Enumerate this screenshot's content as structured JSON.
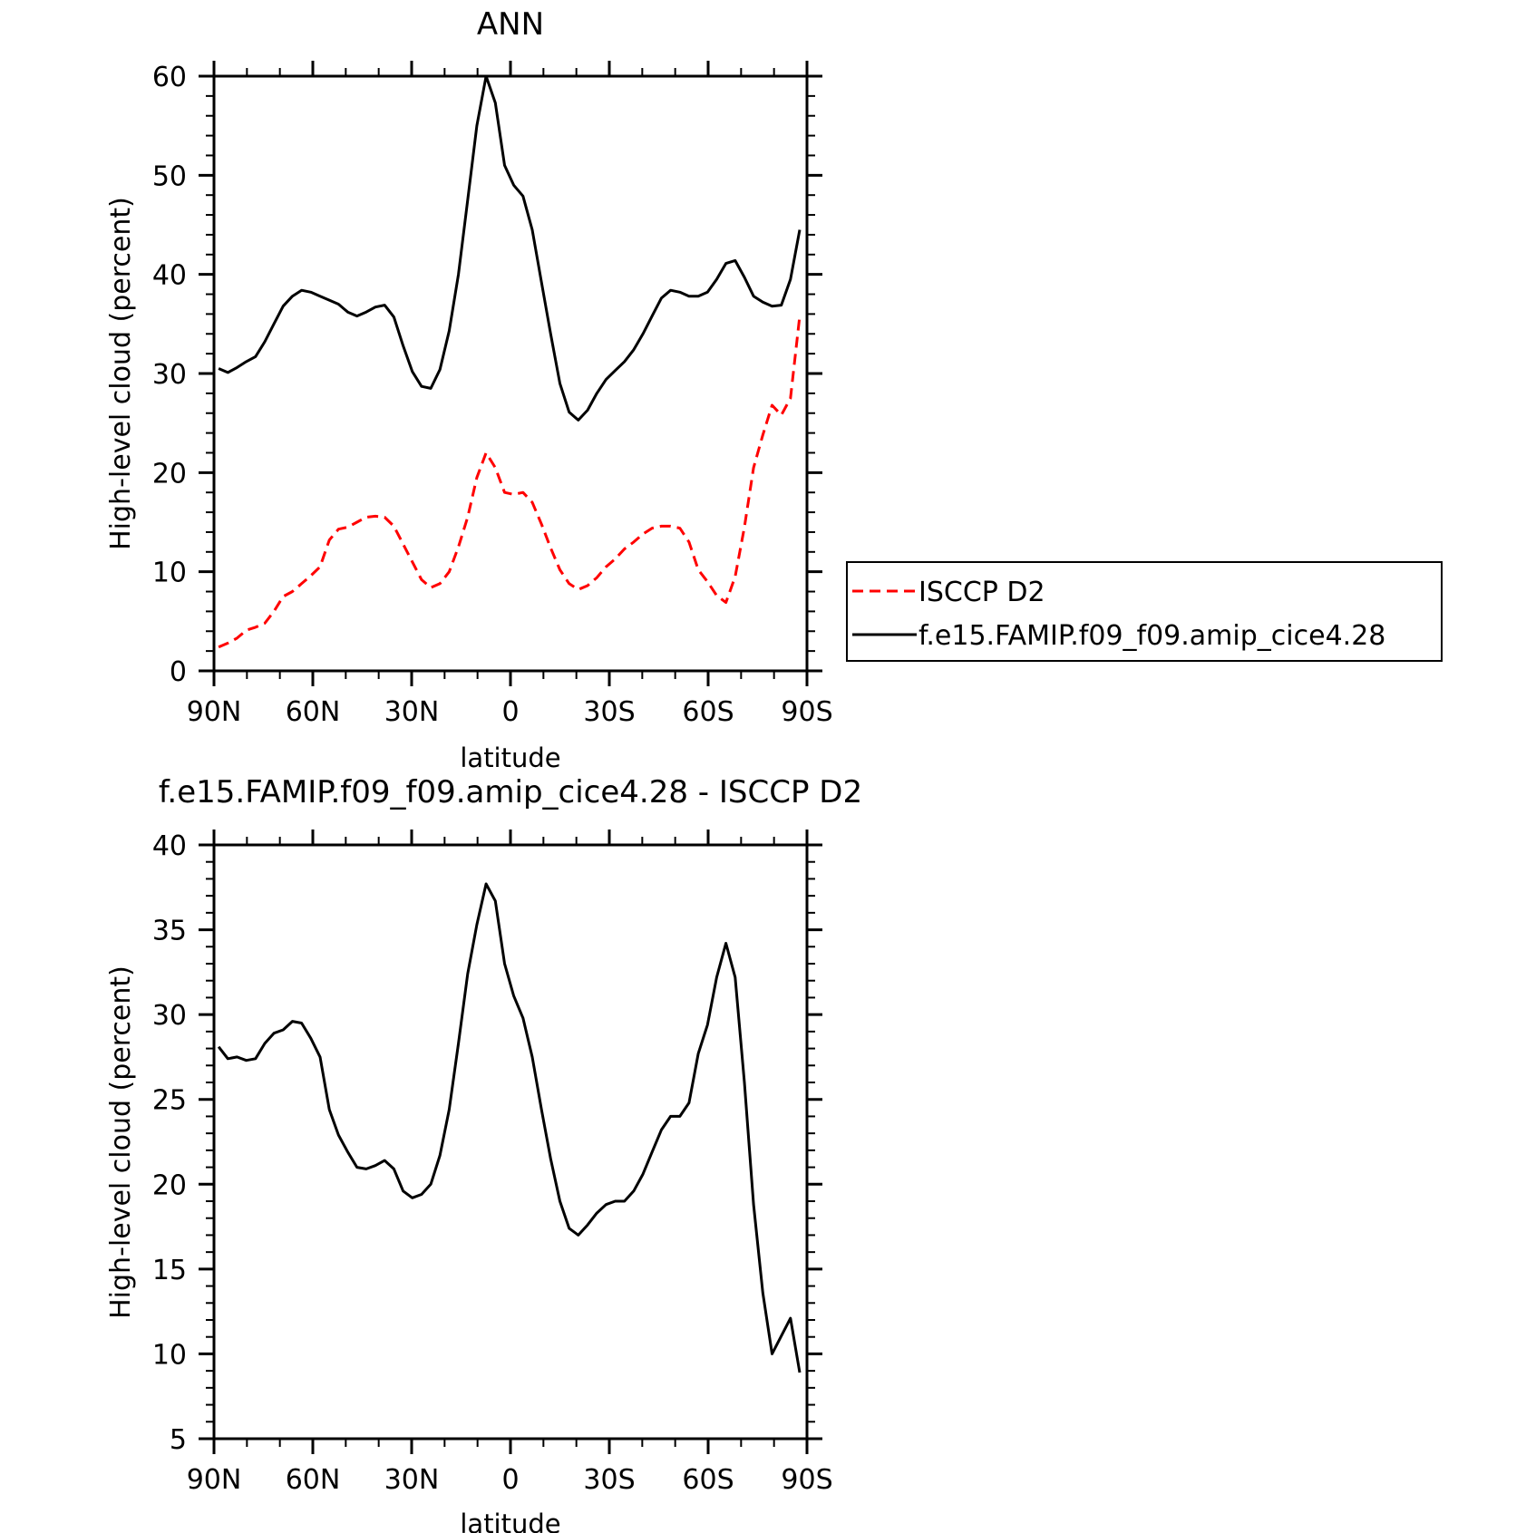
{
  "chart_data": [
    {
      "type": "line",
      "title": "ANN",
      "xlabel": "latitude",
      "ylabel": "High-level cloud (percent)",
      "xlim": [
        90,
        -90
      ],
      "ylim": [
        0,
        60
      ],
      "xticks": [
        {
          "v": 90,
          "label": "90N"
        },
        {
          "v": 60,
          "label": "60N"
        },
        {
          "v": 30,
          "label": "30N"
        },
        {
          "v": 0,
          "label": "0"
        },
        {
          "v": -30,
          "label": "30S"
        },
        {
          "v": -60,
          "label": "60S"
        },
        {
          "v": -90,
          "label": "90S"
        }
      ],
      "yticks": [
        0,
        10,
        20,
        30,
        40,
        50,
        60
      ],
      "legend_position": "right",
      "series": [
        {
          "name": "ISCCP D2",
          "color": "#ff0000",
          "dash": "dashed",
          "x": [
            88.6,
            85.8,
            83.0,
            80.2,
            77.4,
            74.6,
            71.8,
            69.0,
            66.2,
            63.4,
            60.6,
            57.8,
            55.0,
            52.2,
            49.4,
            46.6,
            43.8,
            41.0,
            38.2,
            35.4,
            32.6,
            29.8,
            27.0,
            24.2,
            21.4,
            18.6,
            15.8,
            13.0,
            10.2,
            7.4,
            4.6,
            1.8,
            -1.0,
            -3.8,
            -6.6,
            -9.4,
            -12.2,
            -15.0,
            -17.8,
            -20.6,
            -23.4,
            -26.2,
            -29.0,
            -31.8,
            -34.6,
            -37.4,
            -40.2,
            -43.0,
            -45.8,
            -48.6,
            -51.4,
            -54.2,
            -57.0,
            -59.8,
            -62.6,
            -65.4,
            -68.2,
            -71.0,
            -73.8,
            -76.6,
            -79.4,
            -82.2,
            -85.0,
            -87.8
          ],
          "values": [
            2.4,
            2.8,
            3.3,
            4.1,
            4.4,
            4.8,
            6.0,
            7.5,
            8.0,
            8.8,
            9.6,
            10.5,
            13.2,
            14.3,
            14.5,
            15.0,
            15.5,
            15.6,
            15.5,
            14.6,
            12.8,
            11.0,
            9.2,
            8.4,
            8.8,
            10.0,
            12.5,
            15.5,
            19.5,
            22.0,
            20.5,
            18.0,
            17.8,
            18.0,
            17.0,
            14.8,
            12.4,
            10.2,
            8.8,
            8.2,
            8.6,
            9.4,
            10.5,
            11.3,
            12.3,
            13.0,
            13.8,
            14.4,
            14.6,
            14.6,
            14.4,
            13.0,
            10.2,
            9.0,
            7.6,
            6.9,
            9.5,
            14.5,
            20.5,
            23.8,
            26.8,
            25.8,
            27.5,
            35.8
          ]
        },
        {
          "name": "f.e15.FAMIP.f09_f09.amip_cice4.28",
          "color": "#000000",
          "dash": "solid",
          "x": [
            88.6,
            85.8,
            83.0,
            80.2,
            77.4,
            74.6,
            71.8,
            69.0,
            66.2,
            63.4,
            60.6,
            57.8,
            55.0,
            52.2,
            49.4,
            46.6,
            43.8,
            41.0,
            38.2,
            35.4,
            32.6,
            29.8,
            27.0,
            24.2,
            21.4,
            18.6,
            15.8,
            13.0,
            10.2,
            7.4,
            4.6,
            1.8,
            -1.0,
            -3.8,
            -6.6,
            -9.4,
            -12.2,
            -15.0,
            -17.8,
            -20.6,
            -23.4,
            -26.2,
            -29.0,
            -31.8,
            -34.6,
            -37.4,
            -40.2,
            -43.0,
            -45.8,
            -48.6,
            -51.4,
            -54.2,
            -57.0,
            -59.8,
            -62.6,
            -65.4,
            -68.2,
            -71.0,
            -73.8,
            -76.6,
            -79.4,
            -82.2,
            -85.0,
            -87.8
          ],
          "values": [
            30.5,
            30.1,
            30.6,
            31.2,
            31.7,
            33.2,
            35.0,
            36.8,
            37.8,
            38.4,
            38.2,
            37.8,
            37.4,
            37.0,
            36.2,
            35.8,
            36.2,
            36.7,
            36.9,
            35.7,
            32.8,
            30.2,
            28.7,
            28.5,
            30.4,
            34.3,
            40.0,
            47.5,
            55.0,
            60.0,
            57.3,
            51.0,
            49.0,
            47.9,
            44.5,
            39.2,
            34.0,
            29.0,
            26.1,
            25.3,
            26.3,
            28.0,
            29.4,
            30.3,
            31.2,
            32.4,
            34.0,
            35.8,
            37.6,
            38.4,
            38.2,
            37.8,
            37.8,
            38.2,
            39.5,
            41.1,
            41.4,
            39.7,
            37.8,
            37.2,
            36.8,
            36.9,
            39.5,
            44.5
          ]
        }
      ]
    },
    {
      "type": "line",
      "title": "f.e15.FAMIP.f09_f09.amip_cice4.28 - ISCCP D2",
      "xlabel": "latitude",
      "ylabel": "High-level cloud (percent)",
      "xlim": [
        90,
        -90
      ],
      "ylim": [
        5,
        40
      ],
      "xticks": [
        {
          "v": 90,
          "label": "90N"
        },
        {
          "v": 60,
          "label": "60N"
        },
        {
          "v": 30,
          "label": "30N"
        },
        {
          "v": 0,
          "label": "0"
        },
        {
          "v": -30,
          "label": "30S"
        },
        {
          "v": -60,
          "label": "60S"
        },
        {
          "v": -90,
          "label": "90S"
        }
      ],
      "yticks": [
        5,
        10,
        15,
        20,
        25,
        30,
        35,
        40
      ],
      "series": [
        {
          "color": "#000000",
          "dash": "solid",
          "x": [
            88.6,
            85.8,
            83.0,
            80.2,
            77.4,
            74.6,
            71.8,
            69.0,
            66.2,
            63.4,
            60.6,
            57.8,
            55.0,
            52.2,
            49.4,
            46.6,
            43.8,
            41.0,
            38.2,
            35.4,
            32.6,
            29.8,
            27.0,
            24.2,
            21.4,
            18.6,
            15.8,
            13.0,
            10.2,
            7.4,
            4.6,
            1.8,
            -1.0,
            -3.8,
            -6.6,
            -9.4,
            -12.2,
            -15.0,
            -17.8,
            -20.6,
            -23.4,
            -26.2,
            -29.0,
            -31.8,
            -34.6,
            -37.4,
            -40.2,
            -43.0,
            -45.8,
            -48.6,
            -51.4,
            -54.2,
            -57.0,
            -59.8,
            -62.6,
            -65.4,
            -68.2,
            -71.0,
            -73.8,
            -76.6,
            -79.4,
            -85.0,
            -87.8
          ],
          "values": [
            28.1,
            27.4,
            27.5,
            27.3,
            27.4,
            28.3,
            28.9,
            29.1,
            29.6,
            29.5,
            28.6,
            27.5,
            24.4,
            22.9,
            21.9,
            21.0,
            20.9,
            21.1,
            21.4,
            20.9,
            19.6,
            19.2,
            19.4,
            20.0,
            21.7,
            24.4,
            28.3,
            32.4,
            35.3,
            37.7,
            36.7,
            33.0,
            31.1,
            29.8,
            27.5,
            24.4,
            21.5,
            19.0,
            17.4,
            17.0,
            17.6,
            18.3,
            18.8,
            19.0,
            19.0,
            19.6,
            20.6,
            21.9,
            23.2,
            24.0,
            24.0,
            24.8,
            27.7,
            29.4,
            32.2,
            34.2,
            32.2,
            26.0,
            18.8,
            13.6,
            10.0,
            12.1,
            8.9
          ]
        }
      ]
    }
  ]
}
